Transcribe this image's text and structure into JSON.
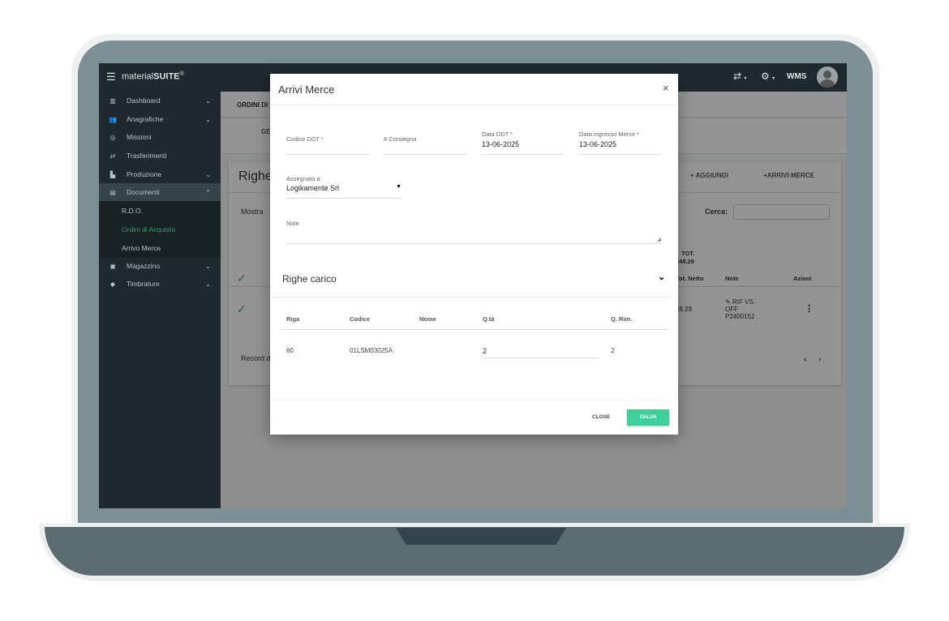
{
  "app": {
    "brand_light": "material",
    "brand_bold": "SUITE",
    "brand_reg": "®",
    "user_label": "WMS"
  },
  "sidebar": {
    "items": [
      {
        "label": "Dashboard",
        "icon": "dashboard-icon",
        "chevron": "down"
      },
      {
        "label": "Anagrafiche",
        "icon": "people-icon",
        "chevron": "down"
      },
      {
        "label": "Missioni",
        "icon": "target-icon"
      },
      {
        "label": "Trasferimenti",
        "icon": "transfer-icon"
      },
      {
        "label": "Produzione",
        "icon": "factory-icon",
        "chevron": "down"
      },
      {
        "label": "Documenti",
        "icon": "document-icon",
        "chevron": "up",
        "active": true
      },
      {
        "label": "Magazzino",
        "icon": "warehouse-icon",
        "chevron": "down"
      },
      {
        "label": "Timbrature",
        "icon": "tag-icon",
        "chevron": "down"
      }
    ],
    "subitems": [
      {
        "label": "R.D.O."
      },
      {
        "label": "Ordini di Acquisto",
        "active": true
      },
      {
        "label": "Arrivo Merce"
      }
    ]
  },
  "background": {
    "breadcrumb": "ORDINI DI",
    "tab": "GE",
    "card_title": "Righe",
    "add_label": "+ AGGIUNGI",
    "arrivi_label": "+ARRIVI MERCE",
    "show_label": "Mostra",
    "search_label": "Cerca:",
    "tot_label": "TOT.",
    "tot_value": "248.29",
    "col_tot": "Tot. Netto",
    "col_note": "Note",
    "col_actions": "Azioni",
    "row_tot": "48.29",
    "row_note": "RIF VS. OFF P2400152",
    "record_label": "Record d"
  },
  "modal": {
    "title": "Arrivi Merce",
    "fields": {
      "codice_ddt": {
        "label": "Codice DDT *",
        "value": ""
      },
      "consegna": {
        "label": "# Consegna",
        "value": ""
      },
      "data_ddt": {
        "label": "Data DDT *",
        "value": "13-06-2025"
      },
      "data_ingresso": {
        "label": "Data ingresso Merce *",
        "value": "13-06-2025"
      },
      "assegnato": {
        "label": "Assegnato a",
        "value": "Logikamente Srl"
      },
      "note": {
        "label": "Note",
        "value": ""
      }
    },
    "section_title": "Righe carico",
    "table": {
      "headers": [
        "Riga",
        "Codice",
        "Nome",
        "Q.tà",
        "Q. Rim."
      ],
      "rows": [
        {
          "riga": "60",
          "codice": "01LSM03025A",
          "nome": "",
          "qta": "2",
          "qrim": "2"
        }
      ]
    },
    "close_label": "CLOSE",
    "save_label": "SALVA"
  },
  "colors": {
    "accent": "#3ecf9a",
    "sidebar": "#1f2a2e",
    "active_sub": "#2fa36e"
  }
}
